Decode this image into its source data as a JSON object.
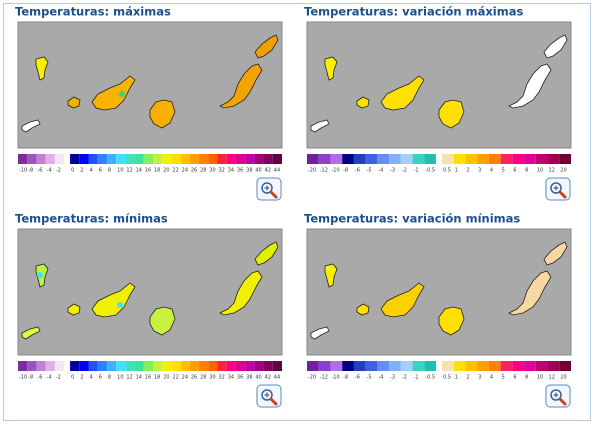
{
  "panels": [
    {
      "title": "Temperaturas: máximas",
      "legend": {
        "negative": [
          {
            "label": "-10",
            "color": "#7b2d9e"
          },
          {
            "label": "-8",
            "color": "#a050c0"
          },
          {
            "label": "-6",
            "color": "#c080d8"
          },
          {
            "label": "-4",
            "color": "#e0b0e8"
          },
          {
            "label": "-2",
            "color": "#f4e4f4"
          }
        ],
        "positive": [
          {
            "label": "0",
            "color": "#0000a0"
          },
          {
            "label": "2",
            "color": "#0000ff"
          },
          {
            "label": "4",
            "color": "#2050ff"
          },
          {
            "label": "6",
            "color": "#3080ff"
          },
          {
            "label": "8",
            "color": "#40b0ff"
          },
          {
            "label": "10",
            "color": "#40e0ff"
          },
          {
            "label": "12",
            "color": "#40e0c0"
          },
          {
            "label": "14",
            "color": "#40e0a0"
          },
          {
            "label": "16",
            "color": "#80f060"
          },
          {
            "label": "18",
            "color": "#c0f040"
          },
          {
            "label": "20",
            "color": "#f0f000"
          },
          {
            "label": "22",
            "color": "#ffe000"
          },
          {
            "label": "24",
            "color": "#ffc000"
          },
          {
            "label": "26",
            "color": "#ffa000"
          },
          {
            "label": "28",
            "color": "#ff8000"
          },
          {
            "label": "30",
            "color": "#ff6000"
          },
          {
            "label": "32",
            "color": "#ff2040"
          },
          {
            "label": "34",
            "color": "#ff0080"
          },
          {
            "label": "36",
            "color": "#e00090"
          },
          {
            "label": "38",
            "color": "#c000a0"
          },
          {
            "label": "40",
            "color": "#a00080"
          },
          {
            "label": "42",
            "color": "#800060"
          },
          {
            "label": "44",
            "color": "#600040"
          }
        ]
      }
    },
    {
      "title": "Temperaturas: variación máximas",
      "legend": {
        "negative": [
          {
            "label": "-20",
            "color": "#7020a0"
          },
          {
            "label": "-12",
            "color": "#9040c8"
          },
          {
            "label": "-10",
            "color": "#b070e0"
          },
          {
            "label": "-8",
            "color": "#000080"
          },
          {
            "label": "-6",
            "color": "#2040c0"
          },
          {
            "label": "-5",
            "color": "#4060e0"
          },
          {
            "label": "-4",
            "color": "#6090f0"
          },
          {
            "label": "-3",
            "color": "#80b0f8"
          },
          {
            "label": "-2",
            "color": "#a0d0ff"
          },
          {
            "label": "-1",
            "color": "#40d0c0"
          },
          {
            "label": "-0.5",
            "color": "#20c0b0"
          }
        ],
        "positive": [
          {
            "label": "0.5",
            "color": "#f8e0b0"
          },
          {
            "label": "1",
            "color": "#ffe000"
          },
          {
            "label": "2",
            "color": "#ffc000"
          },
          {
            "label": "3",
            "color": "#ffa000"
          },
          {
            "label": "4",
            "color": "#ff8000"
          },
          {
            "label": "5",
            "color": "#ff2060"
          },
          {
            "label": "6",
            "color": "#ff0080"
          },
          {
            "label": "8",
            "color": "#e000a0"
          },
          {
            "label": "10",
            "color": "#c00070"
          },
          {
            "label": "12",
            "color": "#a00050"
          },
          {
            "label": "20",
            "color": "#700030"
          }
        ]
      }
    },
    {
      "title": "Temperaturas: mínimas",
      "legend": {
        "negative": [
          {
            "label": "-10",
            "color": "#7b2d9e"
          },
          {
            "label": "-8",
            "color": "#a050c0"
          },
          {
            "label": "-6",
            "color": "#c080d8"
          },
          {
            "label": "-4",
            "color": "#e0b0e8"
          },
          {
            "label": "-2",
            "color": "#f4e4f4"
          }
        ],
        "positive": [
          {
            "label": "0",
            "color": "#0000a0"
          },
          {
            "label": "2",
            "color": "#0000ff"
          },
          {
            "label": "4",
            "color": "#2050ff"
          },
          {
            "label": "6",
            "color": "#3080ff"
          },
          {
            "label": "8",
            "color": "#40b0ff"
          },
          {
            "label": "10",
            "color": "#40e0ff"
          },
          {
            "label": "12",
            "color": "#40e0c0"
          },
          {
            "label": "14",
            "color": "#40e0a0"
          },
          {
            "label": "16",
            "color": "#80f060"
          },
          {
            "label": "18",
            "color": "#c0f040"
          },
          {
            "label": "20",
            "color": "#f0f000"
          },
          {
            "label": "22",
            "color": "#ffe000"
          },
          {
            "label": "24",
            "color": "#ffc000"
          },
          {
            "label": "26",
            "color": "#ffa000"
          },
          {
            "label": "28",
            "color": "#ff8000"
          },
          {
            "label": "30",
            "color": "#ff6000"
          },
          {
            "label": "32",
            "color": "#ff2040"
          },
          {
            "label": "34",
            "color": "#ff0080"
          },
          {
            "label": "36",
            "color": "#e00090"
          },
          {
            "label": "38",
            "color": "#c000a0"
          },
          {
            "label": "40",
            "color": "#a00080"
          },
          {
            "label": "42",
            "color": "#800060"
          },
          {
            "label": "44",
            "color": "#600040"
          }
        ]
      }
    },
    {
      "title": "Temperaturas: variación mínimas",
      "legend": {
        "negative": [
          {
            "label": "-20",
            "color": "#7020a0"
          },
          {
            "label": "-12",
            "color": "#9040c8"
          },
          {
            "label": "-10",
            "color": "#b070e0"
          },
          {
            "label": "-8",
            "color": "#000080"
          },
          {
            "label": "-6",
            "color": "#2040c0"
          },
          {
            "label": "-5",
            "color": "#4060e0"
          },
          {
            "label": "-4",
            "color": "#6090f0"
          },
          {
            "label": "-3",
            "color": "#80b0f8"
          },
          {
            "label": "-2",
            "color": "#a0d0ff"
          },
          {
            "label": "-1",
            "color": "#40d0c0"
          },
          {
            "label": "-0.5",
            "color": "#20c0b0"
          }
        ],
        "positive": [
          {
            "label": "0.5",
            "color": "#f8e0b0"
          },
          {
            "label": "1",
            "color": "#ffe000"
          },
          {
            "label": "2",
            "color": "#ffc000"
          },
          {
            "label": "3",
            "color": "#ffa000"
          },
          {
            "label": "4",
            "color": "#ff8000"
          },
          {
            "label": "5",
            "color": "#ff2060"
          },
          {
            "label": "6",
            "color": "#ff0080"
          },
          {
            "label": "8",
            "color": "#e000a0"
          },
          {
            "label": "10",
            "color": "#c00070"
          },
          {
            "label": "12",
            "color": "#a00050"
          },
          {
            "label": "20",
            "color": "#700030"
          }
        ]
      }
    }
  ]
}
